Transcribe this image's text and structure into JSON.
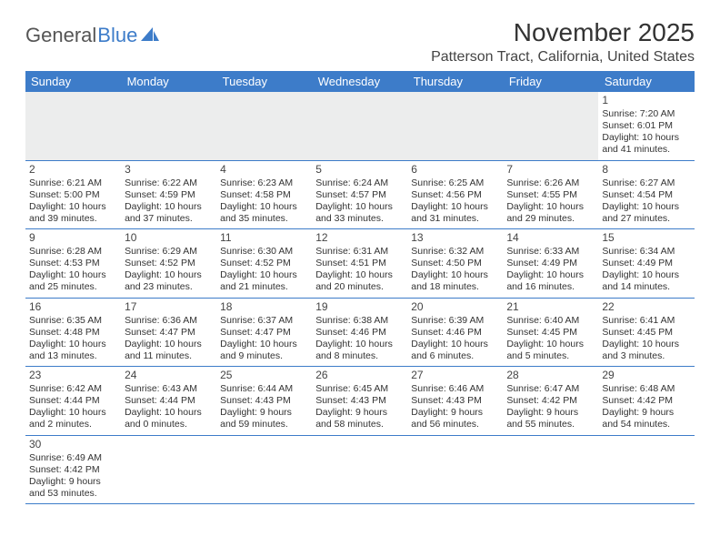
{
  "logo": {
    "word1": "General",
    "word2": "Blue",
    "icon_color": "#3d7cc9"
  },
  "title": "November 2025",
  "location": "Patterson Tract, California, United States",
  "colors": {
    "header_bg": "#3d7cc9",
    "header_text": "#ffffff",
    "blank_bg": "#eceded",
    "border": "#3d7cc9"
  },
  "day_headers": [
    "Sunday",
    "Monday",
    "Tuesday",
    "Wednesday",
    "Thursday",
    "Friday",
    "Saturday"
  ],
  "weeks": [
    [
      null,
      null,
      null,
      null,
      null,
      null,
      {
        "n": "1",
        "sr": "Sunrise: 7:20 AM",
        "ss": "Sunset: 6:01 PM",
        "dl": "Daylight: 10 hours and 41 minutes."
      }
    ],
    [
      {
        "n": "2",
        "sr": "Sunrise: 6:21 AM",
        "ss": "Sunset: 5:00 PM",
        "dl": "Daylight: 10 hours and 39 minutes."
      },
      {
        "n": "3",
        "sr": "Sunrise: 6:22 AM",
        "ss": "Sunset: 4:59 PM",
        "dl": "Daylight: 10 hours and 37 minutes."
      },
      {
        "n": "4",
        "sr": "Sunrise: 6:23 AM",
        "ss": "Sunset: 4:58 PM",
        "dl": "Daylight: 10 hours and 35 minutes."
      },
      {
        "n": "5",
        "sr": "Sunrise: 6:24 AM",
        "ss": "Sunset: 4:57 PM",
        "dl": "Daylight: 10 hours and 33 minutes."
      },
      {
        "n": "6",
        "sr": "Sunrise: 6:25 AM",
        "ss": "Sunset: 4:56 PM",
        "dl": "Daylight: 10 hours and 31 minutes."
      },
      {
        "n": "7",
        "sr": "Sunrise: 6:26 AM",
        "ss": "Sunset: 4:55 PM",
        "dl": "Daylight: 10 hours and 29 minutes."
      },
      {
        "n": "8",
        "sr": "Sunrise: 6:27 AM",
        "ss": "Sunset: 4:54 PM",
        "dl": "Daylight: 10 hours and 27 minutes."
      }
    ],
    [
      {
        "n": "9",
        "sr": "Sunrise: 6:28 AM",
        "ss": "Sunset: 4:53 PM",
        "dl": "Daylight: 10 hours and 25 minutes."
      },
      {
        "n": "10",
        "sr": "Sunrise: 6:29 AM",
        "ss": "Sunset: 4:52 PM",
        "dl": "Daylight: 10 hours and 23 minutes."
      },
      {
        "n": "11",
        "sr": "Sunrise: 6:30 AM",
        "ss": "Sunset: 4:52 PM",
        "dl": "Daylight: 10 hours and 21 minutes."
      },
      {
        "n": "12",
        "sr": "Sunrise: 6:31 AM",
        "ss": "Sunset: 4:51 PM",
        "dl": "Daylight: 10 hours and 20 minutes."
      },
      {
        "n": "13",
        "sr": "Sunrise: 6:32 AM",
        "ss": "Sunset: 4:50 PM",
        "dl": "Daylight: 10 hours and 18 minutes."
      },
      {
        "n": "14",
        "sr": "Sunrise: 6:33 AM",
        "ss": "Sunset: 4:49 PM",
        "dl": "Daylight: 10 hours and 16 minutes."
      },
      {
        "n": "15",
        "sr": "Sunrise: 6:34 AM",
        "ss": "Sunset: 4:49 PM",
        "dl": "Daylight: 10 hours and 14 minutes."
      }
    ],
    [
      {
        "n": "16",
        "sr": "Sunrise: 6:35 AM",
        "ss": "Sunset: 4:48 PM",
        "dl": "Daylight: 10 hours and 13 minutes."
      },
      {
        "n": "17",
        "sr": "Sunrise: 6:36 AM",
        "ss": "Sunset: 4:47 PM",
        "dl": "Daylight: 10 hours and 11 minutes."
      },
      {
        "n": "18",
        "sr": "Sunrise: 6:37 AM",
        "ss": "Sunset: 4:47 PM",
        "dl": "Daylight: 10 hours and 9 minutes."
      },
      {
        "n": "19",
        "sr": "Sunrise: 6:38 AM",
        "ss": "Sunset: 4:46 PM",
        "dl": "Daylight: 10 hours and 8 minutes."
      },
      {
        "n": "20",
        "sr": "Sunrise: 6:39 AM",
        "ss": "Sunset: 4:46 PM",
        "dl": "Daylight: 10 hours and 6 minutes."
      },
      {
        "n": "21",
        "sr": "Sunrise: 6:40 AM",
        "ss": "Sunset: 4:45 PM",
        "dl": "Daylight: 10 hours and 5 minutes."
      },
      {
        "n": "22",
        "sr": "Sunrise: 6:41 AM",
        "ss": "Sunset: 4:45 PM",
        "dl": "Daylight: 10 hours and 3 minutes."
      }
    ],
    [
      {
        "n": "23",
        "sr": "Sunrise: 6:42 AM",
        "ss": "Sunset: 4:44 PM",
        "dl": "Daylight: 10 hours and 2 minutes."
      },
      {
        "n": "24",
        "sr": "Sunrise: 6:43 AM",
        "ss": "Sunset: 4:44 PM",
        "dl": "Daylight: 10 hours and 0 minutes."
      },
      {
        "n": "25",
        "sr": "Sunrise: 6:44 AM",
        "ss": "Sunset: 4:43 PM",
        "dl": "Daylight: 9 hours and 59 minutes."
      },
      {
        "n": "26",
        "sr": "Sunrise: 6:45 AM",
        "ss": "Sunset: 4:43 PM",
        "dl": "Daylight: 9 hours and 58 minutes."
      },
      {
        "n": "27",
        "sr": "Sunrise: 6:46 AM",
        "ss": "Sunset: 4:43 PM",
        "dl": "Daylight: 9 hours and 56 minutes."
      },
      {
        "n": "28",
        "sr": "Sunrise: 6:47 AM",
        "ss": "Sunset: 4:42 PM",
        "dl": "Daylight: 9 hours and 55 minutes."
      },
      {
        "n": "29",
        "sr": "Sunrise: 6:48 AM",
        "ss": "Sunset: 4:42 PM",
        "dl": "Daylight: 9 hours and 54 minutes."
      }
    ],
    [
      {
        "n": "30",
        "sr": "Sunrise: 6:49 AM",
        "ss": "Sunset: 4:42 PM",
        "dl": "Daylight: 9 hours and 53 minutes."
      },
      null,
      null,
      null,
      null,
      null,
      null
    ]
  ]
}
